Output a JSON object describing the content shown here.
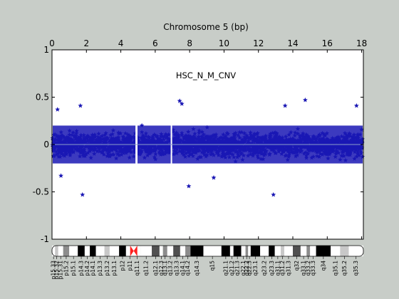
{
  "chart_data": {
    "type": "scatter",
    "title": "Chromosome 5 (bp)",
    "annotation": "HSC_N_M_CNV",
    "x_axis_position": "top",
    "xlim": [
      0,
      18.1
    ],
    "ylim": [
      -1,
      1
    ],
    "x_ticks": [
      0,
      2,
      4,
      6,
      8,
      10,
      12,
      14,
      16,
      18
    ],
    "x_tick_labels": [
      "0",
      "2",
      "4",
      "6",
      "8",
      "10",
      "12",
      "14",
      "16",
      "18"
    ],
    "y_ticks": [
      1,
      0.5,
      0,
      -0.5,
      -1
    ],
    "y_tick_labels": [
      "1",
      "0.5",
      "0",
      "-0.5",
      "-1"
    ],
    "x_tick_multiplier": 10000000,
    "grid": false,
    "zero_line": true,
    "colors": {
      "points": "#1a17b4",
      "zero_line": "#8a9cc8",
      "figure_bg": "#c8cdc8",
      "plot_bg": "#ffffff",
      "centromere": "#ff2020"
    },
    "series": [
      {
        "marker": "star",
        "summary": {
          "bulk_min": -0.2,
          "bulk_max": 0.2,
          "gaps_x": [
            [
              4.85,
              4.97
            ],
            [
              6.9,
              6.97
            ]
          ]
        },
        "outliers": [
          {
            "x": 1.77,
            "y": -0.53
          },
          {
            "x": 12.87,
            "y": -0.53
          },
          {
            "x": 7.95,
            "y": -0.44
          },
          {
            "x": 14.72,
            "y": 0.47
          },
          {
            "x": 7.42,
            "y": 0.46
          },
          {
            "x": 7.55,
            "y": 0.43
          },
          {
            "x": 1.65,
            "y": 0.41
          },
          {
            "x": 0.32,
            "y": 0.37
          },
          {
            "x": 9.4,
            "y": -0.35
          },
          {
            "x": 0.52,
            "y": -0.33
          },
          {
            "x": 17.7,
            "y": 0.41
          },
          {
            "x": 13.55,
            "y": 0.41
          }
        ]
      }
    ],
    "ideogram": {
      "centromere_x": 4.75,
      "bands": [
        {
          "name": "p15.33",
          "x0": 0.0,
          "x1": 0.18,
          "stain": "gneg"
        },
        {
          "name": "p15.32",
          "x0": 0.18,
          "x1": 0.36,
          "stain": "gpos25"
        },
        {
          "name": "p15.31",
          "x0": 0.36,
          "x1": 0.65,
          "stain": "gneg"
        },
        {
          "name": "p15.2",
          "x0": 0.65,
          "x1": 1.0,
          "stain": "gpos50"
        },
        {
          "name": "p15.1",
          "x0": 1.0,
          "x1": 1.5,
          "stain": "gneg"
        },
        {
          "name": "p14.3",
          "x0": 1.5,
          "x1": 1.9,
          "stain": "gpos100"
        },
        {
          "name": "p14.2",
          "x0": 1.9,
          "x1": 2.2,
          "stain": "gneg"
        },
        {
          "name": "p14.1",
          "x0": 2.2,
          "x1": 2.55,
          "stain": "gpos100"
        },
        {
          "name": "p13.3",
          "x0": 2.55,
          "x1": 3.05,
          "stain": "gneg"
        },
        {
          "name": "p13.2",
          "x0": 3.05,
          "x1": 3.35,
          "stain": "gpos25"
        },
        {
          "name": "p13.1",
          "x0": 3.35,
          "x1": 3.9,
          "stain": "gneg"
        },
        {
          "name": "p12",
          "x0": 3.9,
          "x1": 4.3,
          "stain": "gpos100"
        },
        {
          "name": "p11",
          "x0": 4.3,
          "x1": 4.75,
          "stain": "gneg"
        },
        {
          "name": "q11.1",
          "x0": 4.75,
          "x1": 5.15,
          "stain": "gneg"
        },
        {
          "name": "q11.2",
          "x0": 5.15,
          "x1": 5.8,
          "stain": "gneg"
        },
        {
          "name": "q12.1",
          "x0": 5.8,
          "x1": 6.25,
          "stain": "gpos75"
        },
        {
          "name": "q12.3",
          "x0": 6.25,
          "x1": 6.45,
          "stain": "gneg"
        },
        {
          "name": "q13.1",
          "x0": 6.45,
          "x1": 6.7,
          "stain": "gpos50"
        },
        {
          "name": "q13.2",
          "x0": 6.7,
          "x1": 7.05,
          "stain": "gneg"
        },
        {
          "name": "q13.3",
          "x0": 7.05,
          "x1": 7.45,
          "stain": "gpos75"
        },
        {
          "name": "q14.1",
          "x0": 7.45,
          "x1": 7.75,
          "stain": "gneg"
        },
        {
          "name": "q14.2",
          "x0": 7.75,
          "x1": 8.05,
          "stain": "gpos50"
        },
        {
          "name": "q14.3",
          "x0": 8.05,
          "x1": 8.8,
          "stain": "gpos100"
        },
        {
          "name": "q15",
          "x0": 8.8,
          "x1": 9.85,
          "stain": "gneg"
        },
        {
          "name": "q21.1",
          "x0": 9.85,
          "x1": 10.35,
          "stain": "gpos100"
        },
        {
          "name": "q21.2",
          "x0": 10.35,
          "x1": 10.55,
          "stain": "gneg"
        },
        {
          "name": "q21.3",
          "x0": 10.55,
          "x1": 11.0,
          "stain": "gpos100"
        },
        {
          "name": "q22.1",
          "x0": 11.0,
          "x1": 11.25,
          "stain": "gneg"
        },
        {
          "name": "q22.2",
          "x0": 11.25,
          "x1": 11.4,
          "stain": "gpos50"
        },
        {
          "name": "q22.3",
          "x0": 11.4,
          "x1": 11.55,
          "stain": "gneg"
        },
        {
          "name": "q23.1",
          "x0": 11.55,
          "x1": 12.1,
          "stain": "gpos100"
        },
        {
          "name": "q23.2",
          "x0": 12.1,
          "x1": 12.6,
          "stain": "gneg"
        },
        {
          "name": "q23.3",
          "x0": 12.6,
          "x1": 12.95,
          "stain": "gpos100"
        },
        {
          "name": "q31.1",
          "x0": 12.95,
          "x1": 13.3,
          "stain": "gneg"
        },
        {
          "name": "q31.2",
          "x0": 13.3,
          "x1": 13.5,
          "stain": "gpos25"
        },
        {
          "name": "q31.3",
          "x0": 13.5,
          "x1": 14.0,
          "stain": "gneg"
        },
        {
          "name": "q32",
          "x0": 14.0,
          "x1": 14.45,
          "stain": "gpos75"
        },
        {
          "name": "q33.1",
          "x0": 14.45,
          "x1": 14.8,
          "stain": "gneg"
        },
        {
          "name": "q33.2",
          "x0": 14.8,
          "x1": 15.0,
          "stain": "gpos50"
        },
        {
          "name": "q33.3",
          "x0": 15.0,
          "x1": 15.35,
          "stain": "gneg"
        },
        {
          "name": "q34",
          "x0": 15.35,
          "x1": 16.2,
          "stain": "gpos100"
        },
        {
          "name": "q35.1",
          "x0": 16.2,
          "x1": 16.75,
          "stain": "gneg"
        },
        {
          "name": "q35.2",
          "x0": 16.75,
          "x1": 17.25,
          "stain": "gpos25"
        },
        {
          "name": "q35.3",
          "x0": 17.25,
          "x1": 18.1,
          "stain": "gneg"
        }
      ]
    }
  }
}
